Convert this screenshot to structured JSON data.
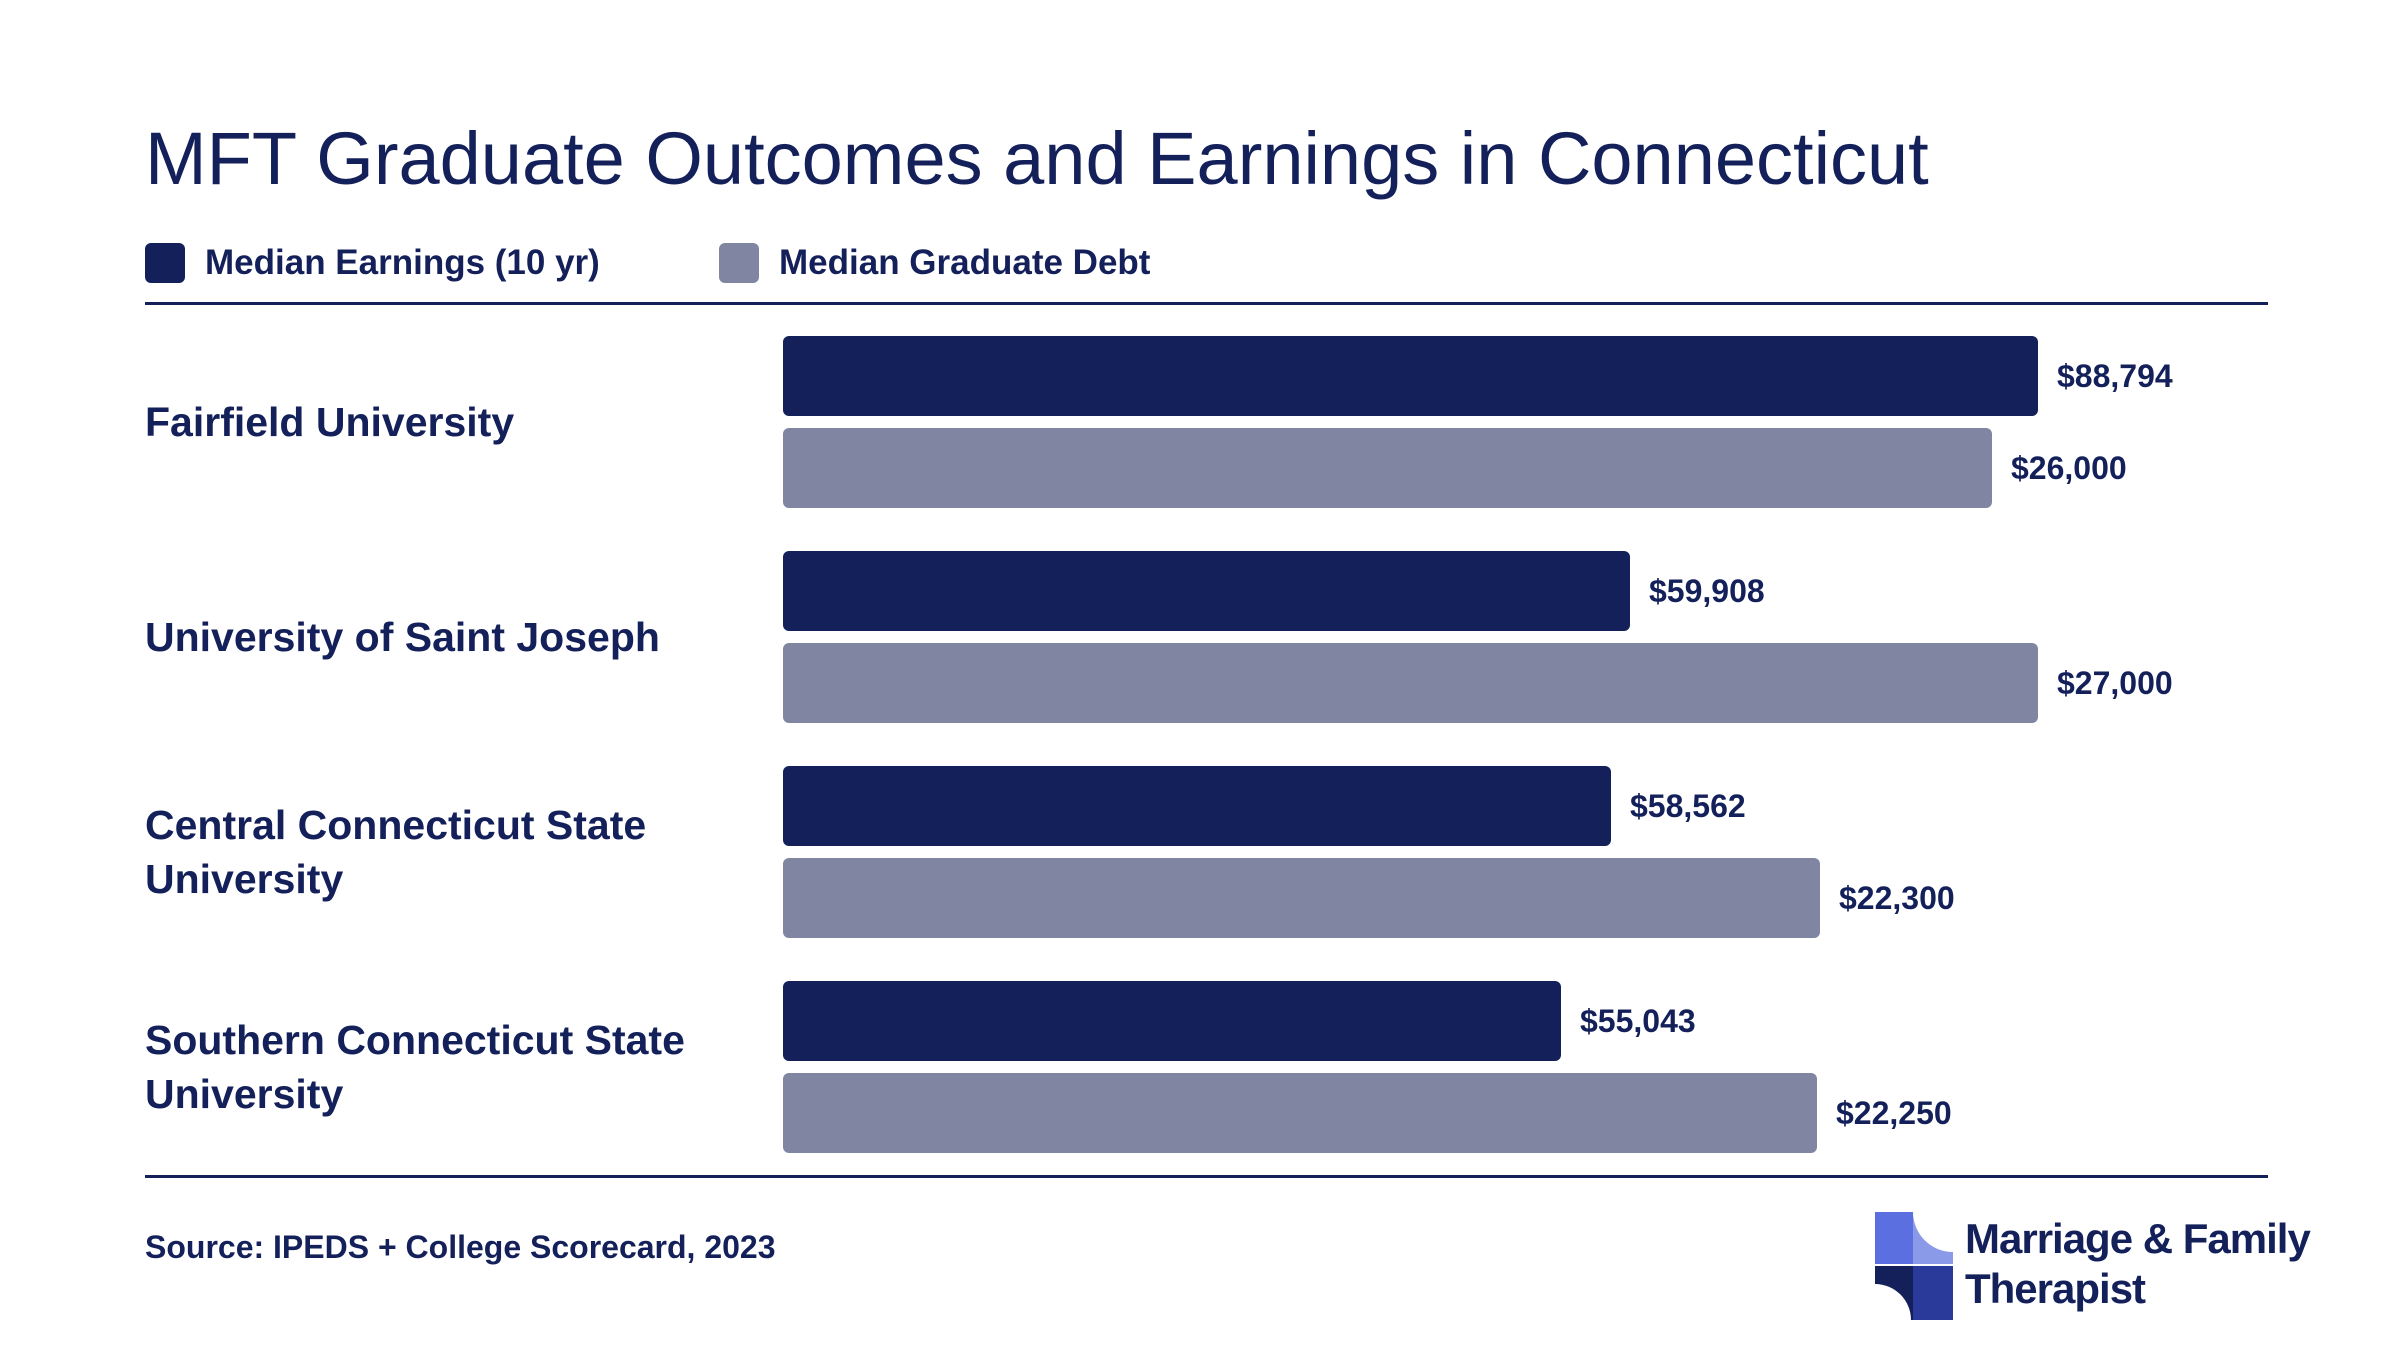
{
  "title": "MFT Graduate Outcomes and Earnings in Connecticut",
  "colors": {
    "earnings": "#14205a",
    "debt": "#8085a2",
    "text": "#14205a"
  },
  "legend": [
    {
      "label": "Median Earnings (10 yr)",
      "color": "#14205a"
    },
    {
      "label": "Median Graduate Debt",
      "color": "#8085a2"
    }
  ],
  "chart_data": {
    "type": "bar",
    "orientation": "horizontal",
    "title": "MFT Graduate Outcomes and Earnings in Connecticut",
    "categories": [
      "Fairfield University",
      "University of Saint Joseph",
      "Central Connecticut State University",
      "Southern Connecticut State University"
    ],
    "series": [
      {
        "name": "Median Earnings (10 yr)",
        "values": [
          88794,
          59908,
          58562,
          55043
        ],
        "labels": [
          "$88,794",
          "$59,908",
          "$58,562",
          "$55,043"
        ]
      },
      {
        "name": "Median Graduate Debt",
        "values": [
          26000,
          27000,
          22300,
          22250
        ],
        "labels": [
          "$26,000",
          "$27,000",
          "$22,300",
          "$22,250"
        ]
      }
    ],
    "legend_position": "top-left",
    "grid": false
  },
  "source": "Source: IPEDS + College Scorecard, 2023",
  "logo": {
    "line1": "Marriage & Family",
    "line2": "Therapist"
  }
}
